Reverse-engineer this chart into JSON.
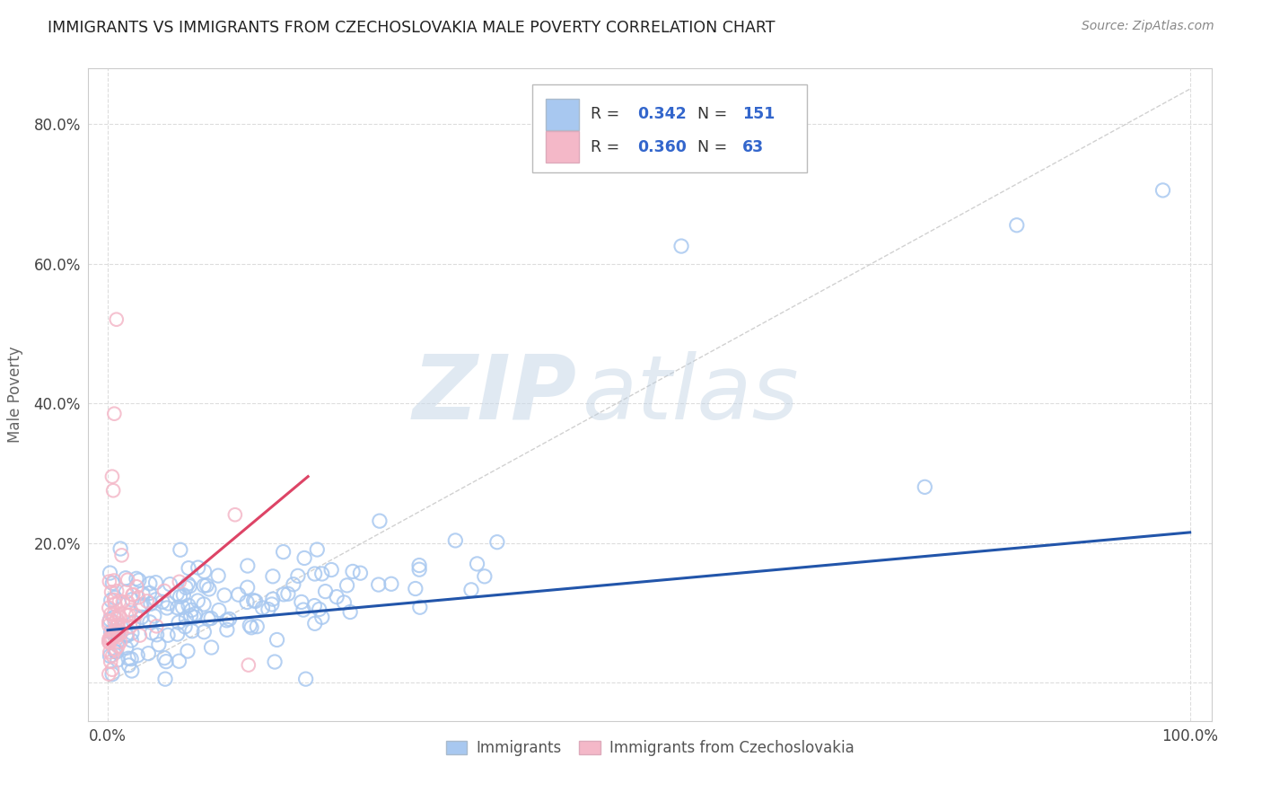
{
  "title": "IMMIGRANTS VS IMMIGRANTS FROM CZECHOSLOVAKIA MALE POVERTY CORRELATION CHART",
  "source": "Source: ZipAtlas.com",
  "ylabel": "Male Poverty",
  "x_tick_labels": [
    "0.0%",
    "100.0%"
  ],
  "y_tick_labels": [
    "",
    "20.0%",
    "40.0%",
    "60.0%",
    "80.0%"
  ],
  "y_ticks": [
    0.0,
    0.2,
    0.4,
    0.6,
    0.8
  ],
  "blue_color": "#a8c8f0",
  "pink_color": "#f4b8c8",
  "blue_edge_color": "#6699cc",
  "pink_edge_color": "#dd8899",
  "blue_line_color": "#2255aa",
  "pink_line_color": "#dd4466",
  "diagonal_color": "#cccccc",
  "R_blue": 0.342,
  "N_blue": 151,
  "R_pink": 0.36,
  "N_pink": 63,
  "legend_label_blue": "Immigrants",
  "legend_label_pink": "Immigrants from Czechoslovakia",
  "watermark_zip": "ZIP",
  "watermark_atlas": "atlas",
  "background_color": "#ffffff",
  "grid_color": "#dddddd",
  "annotation_color": "#3366cc",
  "text_color": "#444444"
}
